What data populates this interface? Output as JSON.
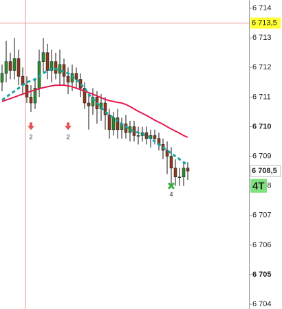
{
  "chart_data": {
    "type": "candlestick",
    "open": [
      6711.5,
      6711.8,
      6712.2,
      6711.9,
      6712.3,
      6711.7,
      6711.4,
      6711.0,
      6710.8,
      6711.3,
      6712.2,
      6712.5,
      6711.9,
      6712.2,
      6711.8,
      6712.1,
      6711.7,
      6711.5,
      6711.8,
      6711.6,
      6711.3,
      6710.8,
      6710.7,
      6711.0,
      6710.6,
      6710.8,
      6710.4,
      6709.9,
      6710.3,
      6709.9,
      6710.1,
      6709.8,
      6710.0,
      6709.7,
      6709.7,
      6709.8,
      6709.6,
      6709.7,
      6709.6,
      6709.4,
      6709.2,
      6709.0,
      6708.6,
      6708.3,
      6708.3,
      6708.6
    ],
    "high": [
      6712.1,
      6712.9,
      6712.5,
      6713.0,
      6712.6,
      6712.0,
      6711.7,
      6711.4,
      6711.6,
      6712.6,
      6713.0,
      6712.8,
      6712.6,
      6712.5,
      6712.6,
      6712.3,
      6712.0,
      6712.1,
      6712.0,
      6711.8,
      6711.5,
      6711.1,
      6711.3,
      6711.2,
      6711.1,
      6711.0,
      6710.6,
      6710.5,
      6710.6,
      6710.3,
      6710.4,
      6710.2,
      6710.2,
      6710.0,
      6710.0,
      6710.0,
      6709.9,
      6709.9,
      6709.8,
      6709.6,
      6709.5,
      6709.3,
      6708.9,
      6708.6,
      6708.8,
      6708.8
    ],
    "low": [
      6711.2,
      6711.5,
      6711.6,
      6711.6,
      6711.4,
      6711.1,
      6710.8,
      6710.5,
      6710.6,
      6711.0,
      6711.8,
      6711.6,
      6711.5,
      6711.6,
      6711.4,
      6711.4,
      6711.1,
      6711.2,
      6711.3,
      6711.0,
      6710.6,
      6709.9,
      6710.4,
      6710.1,
      6710.2,
      6709.9,
      6709.6,
      6709.7,
      6709.6,
      6709.6,
      6709.6,
      6709.5,
      6709.5,
      6709.4,
      6709.5,
      6709.4,
      6709.3,
      6709.4,
      6709.2,
      6708.9,
      6708.4,
      6708.0,
      6708.0,
      6708.0,
      6708.0,
      6708.2
    ],
    "close": [
      6711.8,
      6712.2,
      6711.9,
      6712.3,
      6711.7,
      6711.4,
      6711.0,
      6710.8,
      6711.3,
      6712.2,
      6712.5,
      6711.9,
      6712.2,
      6711.8,
      6712.1,
      6711.7,
      6711.5,
      6711.8,
      6711.6,
      6711.3,
      6710.8,
      6710.7,
      6711.0,
      6710.6,
      6710.8,
      6710.4,
      6709.9,
      6710.3,
      6709.9,
      6710.1,
      6709.8,
      6710.0,
      6709.7,
      6709.7,
      6709.8,
      6709.6,
      6709.7,
      6709.6,
      6709.4,
      6709.2,
      6709.0,
      6708.6,
      6708.3,
      6708.3,
      6708.6,
      6708.5
    ],
    "up_color": "#2e8b2e",
    "down_color": "#8b3a1e",
    "lines": [
      {
        "color": "#e8174a",
        "dashed": false,
        "values": [
          6710.85,
          6710.9,
          6710.95,
          6711.0,
          6711.05,
          6711.1,
          6711.15,
          6711.2,
          6711.24,
          6711.28,
          6711.32,
          6711.35,
          6711.38,
          6711.4,
          6711.4,
          6711.4,
          6711.38,
          6711.35,
          6711.3,
          6711.25,
          6711.2,
          6711.15,
          6711.1,
          6711.04,
          6710.98,
          6710.92,
          6710.88,
          6710.85,
          6710.82,
          6710.8,
          6710.75,
          6710.68,
          6710.6,
          6710.52,
          6710.45,
          6710.38,
          6710.3,
          6710.22,
          6710.15,
          6710.08,
          6710.0,
          6709.92,
          6709.85,
          6709.78,
          6709.7,
          6709.64
        ]
      },
      {
        "color": "#1aa3a3",
        "dashed": true,
        "values": [
          6710.9,
          6711.0,
          6711.1,
          6711.2,
          6711.3,
          6711.4,
          6711.5,
          6711.55,
          6711.6,
          6711.7,
          6711.8,
          6711.9,
          6711.95,
          6711.95,
          6711.9,
          6711.85,
          6711.8,
          6711.7,
          6711.6,
          6711.45,
          6711.3,
          6711.1,
          6710.95,
          6710.8,
          6710.65,
          6710.5,
          6710.4,
          6710.3,
          6710.2,
          6710.1,
          6710.0,
          6709.9,
          6709.85,
          6709.8,
          6709.75,
          6709.7,
          6709.6,
          6709.5,
          6709.4,
          6709.3,
          6709.2,
          6709.1,
          6709.0,
          6708.9,
          6708.8,
          6708.7
        ]
      }
    ],
    "markers": [
      {
        "index": 7,
        "value": 6710.05,
        "kind": "sell",
        "label": "2"
      },
      {
        "index": 16,
        "value": 6710.05,
        "kind": "sell",
        "label": "2"
      },
      {
        "index": 41,
        "value": 6708.0,
        "kind": "exit",
        "label": "4"
      }
    ],
    "ylim": [
      6703.84,
      6714.28
    ],
    "yticks": [
      {
        "value": 6714,
        "label": "6 714"
      },
      {
        "value": 6713,
        "label": "6 713"
      },
      {
        "value": 6712,
        "label": "6 712"
      },
      {
        "value": 6711,
        "label": "6 711"
      },
      {
        "value": 6710,
        "label": "6 710"
      },
      {
        "value": 6709,
        "label": "6 709"
      },
      {
        "value": 6708,
        "label": "6 708"
      },
      {
        "value": 6707,
        "label": "6 707"
      },
      {
        "value": 6706,
        "label": "6 706"
      },
      {
        "value": 6705,
        "label": "6 705"
      },
      {
        "value": 6704,
        "label": "6 704"
      }
    ],
    "crosshair": {
      "value": 6713.5,
      "label": "6 713,5"
    },
    "last_price": {
      "value": 6708.5,
      "label": "6 708,5"
    },
    "tag": {
      "value": 6708.0,
      "label": "4T"
    }
  }
}
